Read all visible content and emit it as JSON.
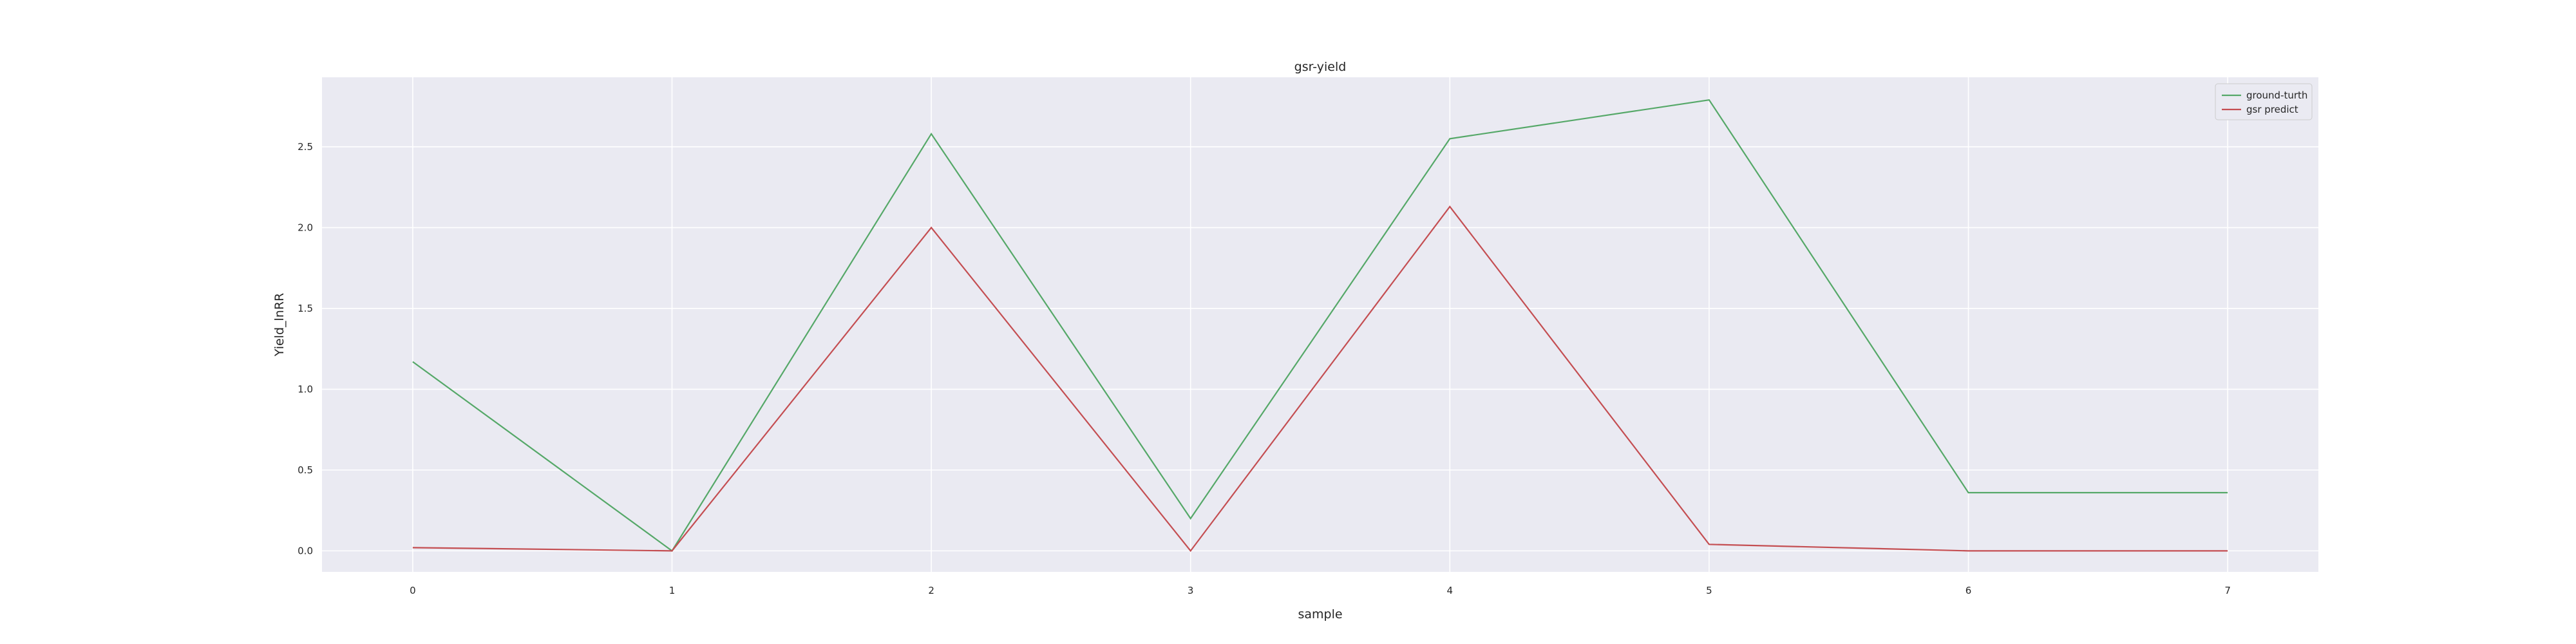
{
  "chart_data": {
    "type": "line",
    "title": "gsr-yield",
    "xlabel": "sample",
    "ylabel": "Yield_lnRR",
    "x": [
      0,
      1,
      2,
      3,
      4,
      5,
      6,
      7
    ],
    "xlim": [
      -0.35,
      7.35
    ],
    "ylim": [
      -0.13,
      2.93
    ],
    "xticks": [
      "0",
      "1",
      "2",
      "3",
      "4",
      "5",
      "6",
      "7"
    ],
    "yticks": [
      "0.0",
      "0.5",
      "1.0",
      "1.5",
      "2.0",
      "2.5"
    ],
    "grid": true,
    "legend_position": "top-right",
    "series": [
      {
        "name": "ground-turth",
        "color": "#55a868",
        "values": [
          1.17,
          0.0,
          2.58,
          0.2,
          2.55,
          2.79,
          0.36,
          0.36
        ]
      },
      {
        "name": "gsr predict",
        "color": "#c44e52",
        "values": [
          0.02,
          0.0,
          2.0,
          0.0,
          2.13,
          0.04,
          0.0,
          0.0
        ]
      }
    ],
    "background": "#eaeaf2",
    "grid_color": "#ffffff"
  }
}
